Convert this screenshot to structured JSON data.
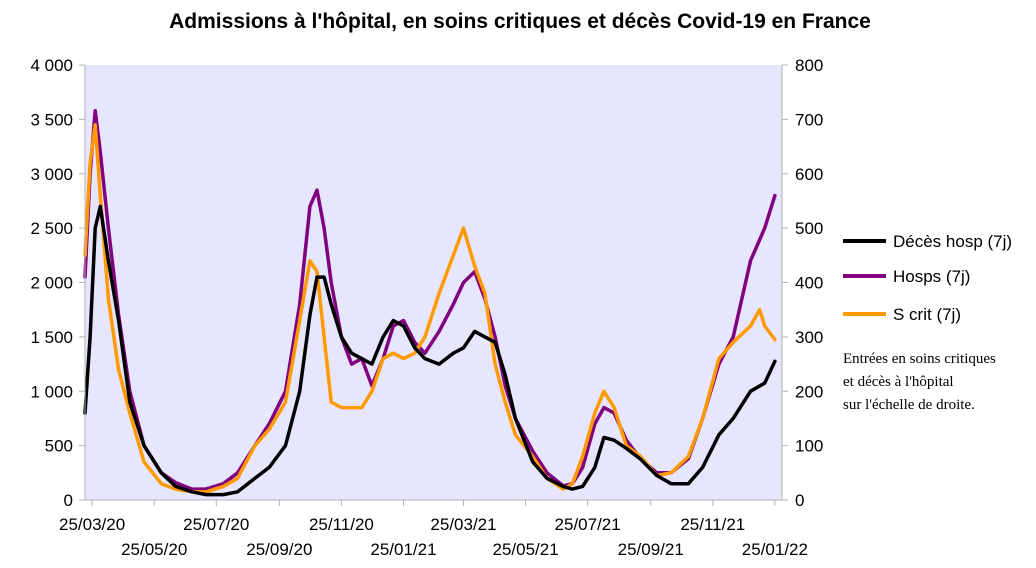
{
  "chart_data": {
    "type": "line",
    "title": "Admissions à l'hôpital, en soins critiques et décès Covid-19 en France",
    "xlabel": "",
    "ylabel": "",
    "x_start": "2020-03-18",
    "x_end": "2022-02-01",
    "x_ticks": [
      "25/03/20",
      "25/05/20",
      "25/07/20",
      "25/09/20",
      "25/11/20",
      "25/01/21",
      "25/03/21",
      "25/05/21",
      "25/07/21",
      "25/09/21",
      "25/11/21",
      "25/01/22"
    ],
    "y_left": {
      "min": 0,
      "max": 4000,
      "ticks": [
        "0",
        "500",
        "1 000",
        "1 500",
        "2 000",
        "2 500",
        "3 000",
        "3 500",
        "4 000"
      ]
    },
    "y_right": {
      "min": 0,
      "max": 800,
      "ticks": [
        "0",
        "100",
        "200",
        "300",
        "400",
        "500",
        "600",
        "700",
        "800"
      ]
    },
    "grid": false,
    "plot_background": "#e6e6ff",
    "legend_position": "right",
    "series": [
      {
        "name": "Hosps (7j)",
        "axis": "left",
        "color": "#800080",
        "points": [
          [
            "2020-03-18",
            2050
          ],
          [
            "2020-03-23",
            3000
          ],
          [
            "2020-03-28",
            3580
          ],
          [
            "2020-04-02",
            3200
          ],
          [
            "2020-04-10",
            2500
          ],
          [
            "2020-04-20",
            1700
          ],
          [
            "2020-05-01",
            1000
          ],
          [
            "2020-05-15",
            500
          ],
          [
            "2020-06-01",
            250
          ],
          [
            "2020-06-15",
            160
          ],
          [
            "2020-07-01",
            100
          ],
          [
            "2020-07-15",
            100
          ],
          [
            "2020-08-01",
            150
          ],
          [
            "2020-08-15",
            250
          ],
          [
            "2020-09-01",
            500
          ],
          [
            "2020-09-15",
            700
          ],
          [
            "2020-10-01",
            1000
          ],
          [
            "2020-10-15",
            1800
          ],
          [
            "2020-10-25",
            2700
          ],
          [
            "2020-11-01",
            2850
          ],
          [
            "2020-11-08",
            2500
          ],
          [
            "2020-11-15",
            2000
          ],
          [
            "2020-11-25",
            1500
          ],
          [
            "2020-12-05",
            1250
          ],
          [
            "2020-12-15",
            1300
          ],
          [
            "2020-12-25",
            1050
          ],
          [
            "2021-01-05",
            1300
          ],
          [
            "2021-01-15",
            1600
          ],
          [
            "2021-01-25",
            1650
          ],
          [
            "2021-02-05",
            1450
          ],
          [
            "2021-02-15",
            1350
          ],
          [
            "2021-03-01",
            1550
          ],
          [
            "2021-03-15",
            1800
          ],
          [
            "2021-03-25",
            2000
          ],
          [
            "2021-04-05",
            2100
          ],
          [
            "2021-04-15",
            1850
          ],
          [
            "2021-04-25",
            1500
          ],
          [
            "2021-05-05",
            1050
          ],
          [
            "2021-05-15",
            750
          ],
          [
            "2021-06-01",
            450
          ],
          [
            "2021-06-15",
            250
          ],
          [
            "2021-07-01",
            130
          ],
          [
            "2021-07-10",
            150
          ],
          [
            "2021-07-20",
            300
          ],
          [
            "2021-08-01",
            700
          ],
          [
            "2021-08-10",
            850
          ],
          [
            "2021-08-20",
            800
          ],
          [
            "2021-09-01",
            550
          ],
          [
            "2021-09-15",
            380
          ],
          [
            "2021-10-01",
            250
          ],
          [
            "2021-10-15",
            250
          ],
          [
            "2021-11-01",
            380
          ],
          [
            "2021-11-15",
            750
          ],
          [
            "2021-12-01",
            1250
          ],
          [
            "2021-12-15",
            1500
          ],
          [
            "2022-01-01",
            2200
          ],
          [
            "2022-01-15",
            2500
          ],
          [
            "2022-01-25",
            2800
          ]
        ]
      },
      {
        "name": "S crit (7j)",
        "axis": "right",
        "color": "#ff9900",
        "points": [
          [
            "2020-03-18",
            450
          ],
          [
            "2020-03-23",
            620
          ],
          [
            "2020-03-28",
            690
          ],
          [
            "2020-04-02",
            560
          ],
          [
            "2020-04-10",
            370
          ],
          [
            "2020-04-20",
            240
          ],
          [
            "2020-05-01",
            160
          ],
          [
            "2020-05-15",
            70
          ],
          [
            "2020-06-01",
            30
          ],
          [
            "2020-06-15",
            20
          ],
          [
            "2020-07-01",
            15
          ],
          [
            "2020-07-15",
            15
          ],
          [
            "2020-08-01",
            25
          ],
          [
            "2020-08-15",
            40
          ],
          [
            "2020-09-01",
            100
          ],
          [
            "2020-09-15",
            130
          ],
          [
            "2020-10-01",
            180
          ],
          [
            "2020-10-15",
            330
          ],
          [
            "2020-10-25",
            440
          ],
          [
            "2020-11-01",
            420
          ],
          [
            "2020-11-08",
            300
          ],
          [
            "2020-11-15",
            180
          ],
          [
            "2020-11-25",
            170
          ],
          [
            "2020-12-05",
            170
          ],
          [
            "2020-12-15",
            170
          ],
          [
            "2020-12-25",
            200
          ],
          [
            "2021-01-05",
            260
          ],
          [
            "2021-01-15",
            270
          ],
          [
            "2021-01-25",
            260
          ],
          [
            "2021-02-05",
            270
          ],
          [
            "2021-02-15",
            300
          ],
          [
            "2021-03-01",
            380
          ],
          [
            "2021-03-15",
            450
          ],
          [
            "2021-03-25",
            500
          ],
          [
            "2021-04-05",
            430
          ],
          [
            "2021-04-15",
            380
          ],
          [
            "2021-04-25",
            250
          ],
          [
            "2021-05-05",
            180
          ],
          [
            "2021-05-15",
            120
          ],
          [
            "2021-06-01",
            80
          ],
          [
            "2021-06-15",
            40
          ],
          [
            "2021-07-01",
            20
          ],
          [
            "2021-07-10",
            30
          ],
          [
            "2021-07-20",
            80
          ],
          [
            "2021-08-01",
            160
          ],
          [
            "2021-08-10",
            200
          ],
          [
            "2021-08-20",
            170
          ],
          [
            "2021-09-01",
            100
          ],
          [
            "2021-09-15",
            80
          ],
          [
            "2021-10-01",
            45
          ],
          [
            "2021-10-15",
            50
          ],
          [
            "2021-11-01",
            80
          ],
          [
            "2021-11-15",
            150
          ],
          [
            "2021-12-01",
            260
          ],
          [
            "2021-12-15",
            290
          ],
          [
            "2022-01-01",
            320
          ],
          [
            "2022-01-10",
            350
          ],
          [
            "2022-01-15",
            320
          ],
          [
            "2022-01-25",
            295
          ]
        ]
      },
      {
        "name": "Décès hosp (7j)",
        "axis": "right",
        "color": "#000000",
        "points": [
          [
            "2020-03-18",
            160
          ],
          [
            "2020-03-23",
            300
          ],
          [
            "2020-03-28",
            500
          ],
          [
            "2020-04-02",
            540
          ],
          [
            "2020-04-10",
            440
          ],
          [
            "2020-04-20",
            330
          ],
          [
            "2020-05-01",
            180
          ],
          [
            "2020-05-15",
            100
          ],
          [
            "2020-06-01",
            50
          ],
          [
            "2020-06-15",
            25
          ],
          [
            "2020-07-01",
            15
          ],
          [
            "2020-07-15",
            10
          ],
          [
            "2020-08-01",
            10
          ],
          [
            "2020-08-15",
            15
          ],
          [
            "2020-09-01",
            40
          ],
          [
            "2020-09-15",
            60
          ],
          [
            "2020-10-01",
            100
          ],
          [
            "2020-10-15",
            200
          ],
          [
            "2020-10-25",
            340
          ],
          [
            "2020-11-01",
            410
          ],
          [
            "2020-11-08",
            410
          ],
          [
            "2020-11-15",
            360
          ],
          [
            "2020-11-25",
            300
          ],
          [
            "2020-12-05",
            270
          ],
          [
            "2020-12-15",
            260
          ],
          [
            "2020-12-25",
            250
          ],
          [
            "2021-01-05",
            300
          ],
          [
            "2021-01-15",
            330
          ],
          [
            "2021-01-25",
            320
          ],
          [
            "2021-02-05",
            280
          ],
          [
            "2021-02-15",
            260
          ],
          [
            "2021-03-01",
            250
          ],
          [
            "2021-03-15",
            270
          ],
          [
            "2021-03-25",
            280
          ],
          [
            "2021-04-05",
            310
          ],
          [
            "2021-04-15",
            300
          ],
          [
            "2021-04-25",
            290
          ],
          [
            "2021-05-05",
            230
          ],
          [
            "2021-05-15",
            150
          ],
          [
            "2021-06-01",
            70
          ],
          [
            "2021-06-15",
            40
          ],
          [
            "2021-07-01",
            25
          ],
          [
            "2021-07-10",
            20
          ],
          [
            "2021-07-20",
            25
          ],
          [
            "2021-08-01",
            60
          ],
          [
            "2021-08-10",
            115
          ],
          [
            "2021-08-20",
            110
          ],
          [
            "2021-09-01",
            95
          ],
          [
            "2021-09-15",
            75
          ],
          [
            "2021-10-01",
            45
          ],
          [
            "2021-10-15",
            30
          ],
          [
            "2021-11-01",
            30
          ],
          [
            "2021-11-15",
            60
          ],
          [
            "2021-12-01",
            120
          ],
          [
            "2021-12-15",
            150
          ],
          [
            "2022-01-01",
            200
          ],
          [
            "2022-01-15",
            215
          ],
          [
            "2022-01-25",
            255
          ]
        ]
      }
    ],
    "legend": [
      {
        "label": "Décès hosp (7j)",
        "color": "#000000"
      },
      {
        "label": "Hosps (7j)",
        "color": "#800080"
      },
      {
        "label": "S crit (7j)",
        "color": "#ff9900"
      }
    ],
    "annotation_lines": [
      "Entrées en soins critiques",
      "et décès à l'hôpital",
      "sur l'échelle de droite."
    ]
  }
}
